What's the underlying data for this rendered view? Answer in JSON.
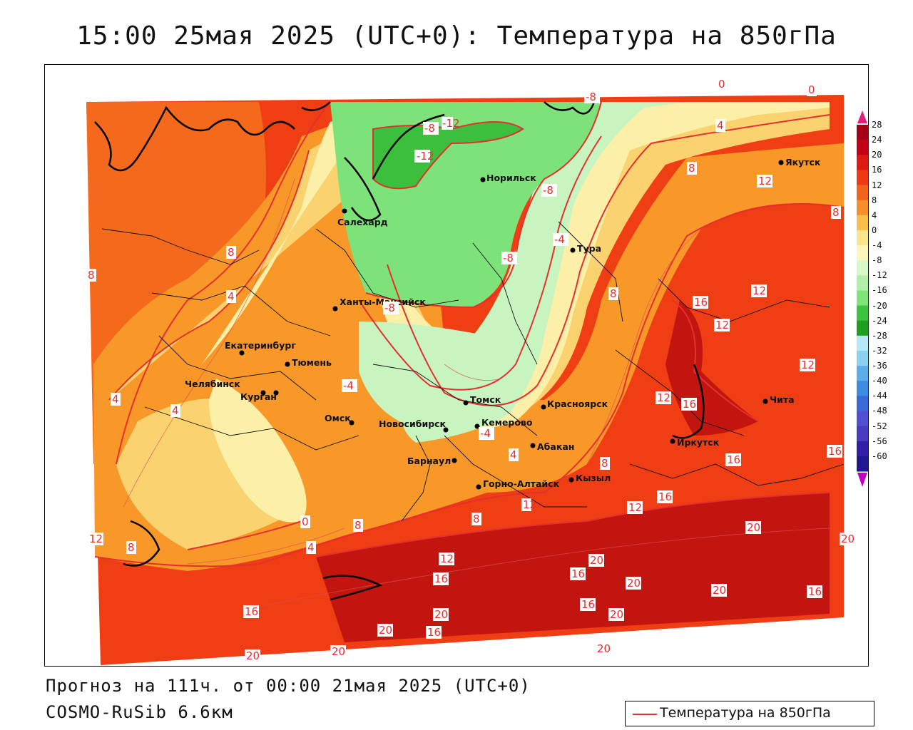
{
  "title": "15:00 25мая 2025 (UTC+0): Температура на 850гПа",
  "forecast_line": "Прогноз на 111ч. от 00:00 21мая 2025 (UTC+0)",
  "model_line": "COSMO-RuSib 6.6км",
  "legend_label": "Температура на 850гПа",
  "cities": [
    {
      "name": "Якутск"
    },
    {
      "name": "Норильск"
    },
    {
      "name": "Салехард"
    },
    {
      "name": "Тура"
    },
    {
      "name": "Ханты-Мансийск"
    },
    {
      "name": "Екатеринбург"
    },
    {
      "name": "Тюмень"
    },
    {
      "name": "Челябинск"
    },
    {
      "name": "Курган"
    },
    {
      "name": "Омск"
    },
    {
      "name": "Новосибирск"
    },
    {
      "name": "Томск"
    },
    {
      "name": "Кемерово"
    },
    {
      "name": "Красноярск"
    },
    {
      "name": "Барнаул"
    },
    {
      "name": "Абакан"
    },
    {
      "name": "Горно-Алтайск"
    },
    {
      "name": "Кызыл"
    },
    {
      "name": "Иркутск"
    },
    {
      "name": "Чита"
    }
  ],
  "contour_labels": [
    "-12",
    "-12",
    "-8",
    "-8",
    "-8",
    "-8",
    "-8",
    "-4",
    "-4",
    "-4",
    "0",
    "0",
    "0",
    "4",
    "4",
    "4",
    "4",
    "4",
    "4",
    "8",
    "8",
    "8",
    "8",
    "8",
    "8",
    "8",
    "8",
    "8",
    "12",
    "12",
    "12",
    "12",
    "12",
    "12",
    "12",
    "12",
    "12",
    "16",
    "16",
    "16",
    "16",
    "16",
    "16",
    "16",
    "16",
    "16",
    "16",
    "16",
    "20",
    "20",
    "20",
    "20",
    "20",
    "20",
    "20",
    "20",
    "20",
    "20",
    "20"
  ],
  "colorbar": {
    "ticks": [
      "28",
      "24",
      "20",
      "16",
      "12",
      "8",
      "4",
      "0",
      "-4",
      "-8",
      "-12",
      "-16",
      "-20",
      "-24",
      "-28",
      "-32",
      "-36",
      "-40",
      "-44",
      "-48",
      "-52",
      "-56",
      "-60"
    ],
    "colors": [
      "#a50015",
      "#c20016",
      "#de1a12",
      "#ee3a12",
      "#f2641c",
      "#f79028",
      "#f8c04a",
      "#fbe48a",
      "#fdf6b8",
      "#d8f8c8",
      "#b0f0a8",
      "#80e478",
      "#3cc43c",
      "#1ea01e",
      "#b8e8f8",
      "#8cd0f0",
      "#5caee8",
      "#3c8ce0",
      "#3a6ad8",
      "#5050d0",
      "#4a3cc0",
      "#3020a8",
      "#201890"
    ],
    "accent_top": "#e0207a",
    "accent_bottom": "#c000c0"
  }
}
